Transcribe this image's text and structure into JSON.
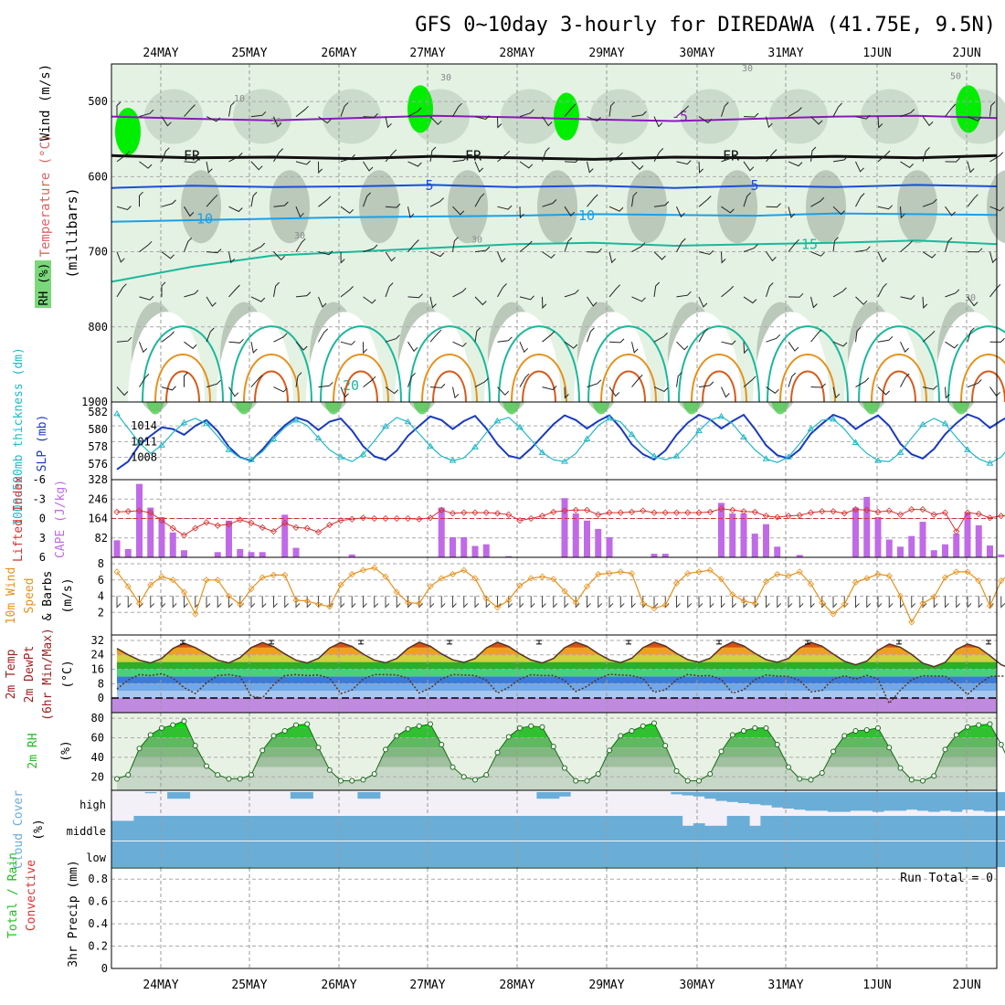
{
  "title": "GFS 0~10day 3-hourly for DIREDAWA (41.75E, 9.5N)",
  "dates": [
    "24MAY",
    "25MAY",
    "26MAY",
    "27MAY",
    "28MAY",
    "29MAY",
    "30MAY",
    "31MAY",
    "1JUN",
    "2JUN"
  ],
  "colors": {
    "rh_light": "#e4f2e4",
    "rh_mid": "#c8d8c8",
    "rh_dark": "#a8b8a8",
    "rh_green": "#50cc50",
    "rh_bright": "#00ee00",
    "t_neg5": "#8a1aba",
    "t_0": "#111111",
    "t_5": "#1a4fd8",
    "t_10": "#1aa0e8",
    "t_15": "#1ab89a",
    "t_20": "#e8901a",
    "t_25": "#d85a1a",
    "slp": "#1a3ac0",
    "thick": "#22b8c8",
    "cape": "#c06ae8",
    "lifted": "#d83030",
    "wind10": "#e8901a",
    "cloud": "#6aaed8",
    "cloud_bg": "#f4f0f8",
    "rh2m": "#20c020"
  },
  "chart_data": [
    {
      "type": "heatmap",
      "name": "upper_air",
      "ylabel": "(millibars)",
      "y_label_parts": [
        "Wind (m/s)",
        "Temperature (°C)",
        "RH (%)"
      ],
      "y_ticks": [
        500,
        600,
        700,
        800
      ],
      "ylim": [
        900,
        450
      ],
      "isotherm_labels": [
        "-5",
        "FR",
        "5",
        "10",
        "15",
        "20"
      ],
      "rh_labels": [
        "10",
        "30",
        "50"
      ],
      "isotherms": [
        {
          "label": "-5",
          "levels_mb": [
            520,
            523,
            525,
            522,
            519,
            521,
            524,
            526,
            523,
            520,
            519,
            522
          ]
        },
        {
          "label": "FR",
          "levels_mb": [
            572,
            575,
            574,
            576,
            573,
            575,
            577,
            574,
            575,
            573,
            575,
            572
          ]
        },
        {
          "label": "5",
          "levels_mb": [
            615,
            612,
            614,
            613,
            611,
            614,
            612,
            615,
            612,
            614,
            611,
            613
          ]
        },
        {
          "label": "10",
          "levels_mb": [
            660,
            658,
            656,
            654,
            653,
            652,
            650,
            651,
            652,
            649,
            650,
            651
          ]
        },
        {
          "label": "15",
          "levels_mb": [
            740,
            720,
            705,
            700,
            695,
            690,
            688,
            692,
            690,
            688,
            685,
            690
          ]
        }
      ],
      "diurnal_loops": {
        "label_20": "20",
        "peak_20_mb": 790,
        "peak_25_mb": 840
      }
    },
    {
      "type": "line",
      "name": "thickness_slp",
      "ylabel_left": "1000-500mb thickness (dm)",
      "ylabel_right": "SLP (mb)",
      "thickness_ticks": [
        "582",
        "580",
        "578",
        "576"
      ],
      "slp_ticks": [
        "1014",
        "1011",
        "1008"
      ],
      "top_label": "1900",
      "slp_mb": [
        1005.7,
        1007.2,
        1010.4,
        1012.1,
        1013.7,
        1013.4,
        1012.3,
        1014.0,
        1015.1,
        1013.0,
        1010.0,
        1008.0,
        1007.4,
        1009.5,
        1012.0,
        1014.1,
        1015.6,
        1014.9,
        1013.2,
        1014.8,
        1015.4,
        1013.1,
        1010.1,
        1008.2,
        1007.5,
        1009.3,
        1012.1,
        1014.0,
        1015.8,
        1015.1,
        1013.4,
        1014.9,
        1015.9,
        1013.5,
        1010.5,
        1008.3,
        1007.8,
        1009.7,
        1012.0,
        1014.3,
        1016.0,
        1015.1,
        1013.5,
        1014.9,
        1016.0,
        1013.6,
        1010.5,
        1008.6,
        1007.6,
        1009.3,
        1012.3,
        1014.6,
        1016.1,
        1015.2,
        1013.5,
        1014.9,
        1016.1,
        1013.4,
        1010.3,
        1008.4,
        1007.8,
        1009.5,
        1012.5,
        1014.4,
        1016.1,
        1015.3,
        1013.4,
        1014.8,
        1016.0,
        1014.0,
        1010.6,
        1008.6,
        1007.8,
        1009.6,
        1012.4,
        1014.5,
        1016.2,
        1015.4,
        1013.6,
        1015.0,
        1016.2,
        1013.8,
        1011.0
      ],
      "thickness_dm": [
        582.3,
        580.7,
        579.1,
        577.9,
        578.8,
        580.2,
        581.3,
        581.8,
        581.2,
        579.8,
        578.3,
        577.4,
        577.2,
        578.1,
        579.5,
        580.8,
        581.6,
        581.0,
        579.6,
        578.3,
        577.5,
        577.0,
        577.8,
        579.3,
        580.9,
        581.9,
        581.4,
        580.1,
        578.7,
        577.6,
        577.1,
        577.4,
        578.6,
        580.2,
        581.5,
        581.9,
        580.8,
        579.4,
        578.0,
        577.2,
        577.0,
        577.9,
        579.5,
        581.0,
        581.8,
        581.4,
        580.0,
        578.6,
        577.6,
        577.2,
        577.6,
        578.9,
        580.4,
        581.6,
        582.0,
        581.2,
        579.7,
        578.3,
        577.3,
        576.9,
        577.5,
        579.0,
        580.6,
        581.6,
        581.7,
        580.6,
        579.1,
        577.9,
        577.1,
        577.0,
        578.0,
        579.6,
        581.1,
        581.8,
        581.2,
        579.7,
        578.3,
        577.3,
        576.8,
        577.5,
        579.0,
        580.5,
        581.3
      ]
    },
    {
      "type": "bar",
      "name": "cape_lifted_index",
      "ylabel_left": "Lifted Index",
      "ylabel_right": "CAPE (J/kg)",
      "cape_ticks": [
        "328",
        "246",
        "164",
        "82"
      ],
      "li_ticks": [
        "-6",
        "-3",
        "0",
        "3",
        "6"
      ],
      "cape_jkg": [
        72,
        35,
        310,
        210,
        170,
        105,
        30,
        0,
        0,
        22,
        155,
        35,
        22,
        22,
        0,
        180,
        40,
        0,
        0,
        0,
        0,
        12,
        0,
        0,
        0,
        0,
        0,
        0,
        0,
        210,
        85,
        85,
        48,
        55,
        0,
        5,
        0,
        0,
        0,
        0,
        250,
        185,
        155,
        120,
        85,
        0,
        0,
        0,
        15,
        15,
        0,
        0,
        0,
        0,
        230,
        185,
        185,
        100,
        140,
        45,
        0,
        10,
        0,
        0,
        0,
        0,
        210,
        255,
        170,
        75,
        45,
        90,
        150,
        30,
        55,
        100,
        190,
        135,
        50,
        12,
        0,
        0,
        0,
        0
      ],
      "lifted_index": [
        -1.0,
        -1.1,
        -1.2,
        -0.9,
        0.3,
        1.5,
        2.6,
        1.5,
        0.6,
        1.1,
        0.9,
        0.2,
        0.7,
        1.4,
        2.0,
        0.7,
        1.4,
        1.5,
        2.1,
        1.0,
        0.3,
        0.1,
        -0.1,
        0.0,
        0.0,
        0.0,
        0.0,
        0.1,
        -0.1,
        -1.3,
        -0.8,
        -0.9,
        -0.9,
        -0.9,
        -0.8,
        -0.6,
        0.3,
        0.0,
        -0.4,
        -1.0,
        -1.2,
        -1.3,
        -1.3,
        -0.6,
        -0.9,
        -0.9,
        -1.0,
        -1.2,
        -0.9,
        -0.9,
        -0.9,
        -0.9,
        -0.9,
        -1.0,
        -1.5,
        -1.3,
        -1.1,
        -1.0,
        -0.4,
        -0.2,
        -0.4,
        -0.5,
        -0.9,
        -1.1,
        -1.1,
        -0.8,
        -1.4,
        -1.3,
        -1.0,
        -1.2,
        -0.6,
        -1.4,
        -1.4,
        -0.6,
        -0.9,
        2.0,
        -0.9,
        -0.7,
        -0.1,
        -0.4,
        -0.5,
        -1.3,
        -0.4
      ]
    },
    {
      "type": "line",
      "name": "wind10m",
      "ylabel": "10m Wind Speed (m/s) & Barbs",
      "y_ticks": [
        "8",
        "6",
        "4",
        "2"
      ],
      "speed_ms": [
        7.0,
        5.2,
        3.1,
        5.4,
        6.4,
        6.0,
        4.5,
        1.8,
        6.0,
        6.0,
        4.0,
        3.0,
        4.9,
        6.3,
        6.6,
        6.6,
        3.5,
        3.4,
        3.0,
        2.7,
        5.4,
        6.7,
        7.2,
        7.5,
        6.4,
        4.5,
        3.2,
        3.1,
        5.2,
        6.2,
        6.7,
        7.2,
        6.2,
        3.7,
        2.6,
        3.5,
        5.3,
        6.2,
        6.4,
        6.1,
        4.6,
        3.2,
        5.2,
        6.7,
        6.8,
        7.0,
        6.8,
        3.1,
        2.5,
        2.9,
        5.6,
        6.8,
        7.0,
        7.2,
        6.1,
        4.2,
        3.4,
        3.1,
        5.8,
        6.7,
        6.5,
        7.0,
        5.5,
        3.2,
        1.8,
        3.0,
        5.7,
        6.2,
        6.7,
        6.5,
        4.0,
        0.8,
        3.1,
        3.9,
        6.3,
        7.0,
        7.0,
        5.9,
        2.8,
        5.9,
        7.0,
        5.8,
        3.9
      ]
    },
    {
      "type": "area",
      "name": "temp2m",
      "ylabel": "2m Temp 2m DewPt (6hr Min/Max) (°C)",
      "y_ticks": [
        "32",
        "24",
        "16",
        "8",
        "0"
      ],
      "temp_c": [
        27.5,
        24.0,
        21.0,
        19.5,
        22.0,
        27.5,
        30.5,
        28.0,
        24.5,
        21.0,
        19.5,
        22.5,
        28.0,
        30.8,
        28.5,
        24.5,
        21.0,
        19.5,
        22.0,
        27.8,
        30.8,
        28.6,
        24.4,
        21.0,
        19.6,
        22.0,
        27.5,
        31.0,
        28.8,
        24.5,
        21.2,
        19.8,
        22.0,
        27.8,
        31.0,
        28.6,
        24.5,
        21.1,
        19.5,
        22.0,
        27.9,
        31.0,
        28.8,
        24.6,
        21.2,
        19.7,
        22.1,
        27.9,
        31.0,
        28.9,
        24.8,
        21.3,
        19.9,
        22.1,
        28.0,
        31.1,
        29.0,
        24.8,
        21.3,
        19.9,
        22.0,
        27.8,
        30.9,
        28.8,
        24.4,
        20.4,
        18.5,
        20.5,
        26.5,
        30.0,
        28.2,
        24.2,
        19.4,
        17.4,
        19.8,
        27.0,
        30.0,
        28.0,
        23.5,
        18.5,
        16.2,
        17.0,
        25.0
      ],
      "dewpt_c": [
        5.0,
        10.0,
        13.0,
        12.5,
        13.5,
        11.0,
        5.8,
        2.5,
        8.5,
        12.5,
        13.0,
        12.0,
        1.0,
        0.0,
        7.5,
        12.5,
        13.0,
        12.5,
        12.8,
        11.0,
        2.5,
        4.5,
        10.5,
        13.0,
        13.0,
        12.8,
        11.0,
        2.8,
        5.5,
        10.6,
        13.0,
        12.8,
        12.5,
        10.0,
        2.8,
        6.0,
        10.5,
        13.0,
        12.5,
        12.5,
        9.8,
        3.6,
        6.5,
        10.6,
        13.2,
        12.8,
        12.5,
        10.8,
        3.2,
        4.6,
        10.2,
        13.1,
        12.3,
        12.5,
        10.3,
        2.7,
        4.6,
        10.2,
        12.8,
        12.2,
        12.0,
        9.8,
        3.4,
        4.2,
        10.5,
        12.4,
        10.5,
        12.6,
        10.5,
        -3.0,
        4.4,
        10.2,
        12.4,
        12.2,
        12.2,
        7.8,
        2.0,
        7.5,
        12.0,
        12.2,
        12.0,
        10.5,
        4.8
      ]
    },
    {
      "type": "area",
      "name": "rh2m",
      "ylabel": "2m RH (%)",
      "y_ticks": [
        "80",
        "60",
        "40",
        "20"
      ],
      "rh_pct": [
        18,
        22,
        49,
        63,
        70,
        73,
        77,
        52,
        31,
        22,
        18,
        18,
        22,
        47,
        62,
        67,
        73,
        74,
        50,
        27,
        16,
        16,
        17,
        23,
        48,
        62,
        69,
        72,
        74,
        53,
        30,
        20,
        17,
        22,
        45,
        61,
        70,
        72,
        71,
        51,
        29,
        16,
        16,
        23,
        47,
        62,
        67,
        72,
        75,
        52,
        26,
        16,
        16,
        23,
        46,
        63,
        67,
        70,
        70,
        53,
        30,
        18,
        17,
        24,
        46,
        62,
        67,
        68,
        70,
        50,
        29,
        17,
        16,
        21,
        48,
        63,
        71,
        73,
        74,
        53,
        29,
        21,
        18
      ]
    },
    {
      "type": "area",
      "name": "cloud_cover",
      "ylabel": "Cloud Cover (%)",
      "y_ticks": [
        "high",
        "middle",
        "low"
      ],
      "high_pct": [
        0,
        0,
        0,
        5,
        0,
        30,
        30,
        0,
        0,
        0,
        0,
        0,
        0,
        0,
        0,
        0,
        30,
        30,
        0,
        0,
        0,
        0,
        30,
        30,
        0,
        0,
        0,
        0,
        0,
        0,
        0,
        0,
        0,
        0,
        0,
        0,
        0,
        0,
        30,
        30,
        20,
        0,
        0,
        0,
        0,
        0,
        0,
        0,
        0,
        0,
        10,
        15,
        20,
        30,
        40,
        45,
        50,
        55,
        60,
        70,
        75,
        80,
        85,
        85,
        90,
        90,
        85,
        85,
        90,
        85,
        85,
        80,
        85,
        90,
        85,
        90,
        80,
        85,
        90,
        85,
        80,
        70,
        65
      ],
      "middle_pct": [
        80,
        80,
        100,
        100,
        100,
        100,
        100,
        100,
        100,
        100,
        100,
        100,
        100,
        100,
        100,
        100,
        100,
        100,
        100,
        100,
        100,
        100,
        100,
        100,
        100,
        100,
        100,
        100,
        100,
        100,
        100,
        100,
        100,
        100,
        100,
        100,
        100,
        100,
        100,
        100,
        100,
        100,
        100,
        100,
        100,
        100,
        100,
        100,
        100,
        100,
        100,
        60,
        70,
        60,
        60,
        100,
        100,
        60,
        100,
        100,
        100,
        100,
        100,
        100,
        100,
        100,
        100,
        100,
        100,
        100,
        100,
        100,
        100,
        100,
        100,
        100,
        100,
        100,
        100,
        100,
        100,
        100,
        100
      ],
      "low_pct": [
        100,
        100,
        100,
        100,
        100,
        100,
        100,
        100,
        100,
        100,
        100,
        100,
        100,
        100,
        100,
        100,
        100,
        100,
        100,
        100,
        100,
        100,
        100,
        100,
        100,
        100,
        100,
        100,
        100,
        100,
        100,
        100,
        100,
        100,
        100,
        100,
        100,
        100,
        100,
        100,
        100,
        100,
        100,
        100,
        100,
        100,
        100,
        100,
        100,
        100,
        100,
        100,
        100,
        100,
        100,
        100,
        100,
        100,
        100,
        100,
        100,
        100,
        100,
        100,
        100,
        100,
        100,
        100,
        100,
        100,
        100,
        100,
        100,
        100,
        100,
        100,
        100,
        100,
        100,
        100,
        100,
        100,
        100
      ]
    },
    {
      "type": "bar",
      "name": "precip",
      "ylabel": "3hr Precip (mm)",
      "label_parts": [
        "Total / Rain",
        "Convective"
      ],
      "run_total": "Run Total = 0",
      "y_ticks": [
        "0.8",
        "0.6",
        "0.4",
        "0.2",
        "0"
      ],
      "ylim": [
        0,
        0.9
      ],
      "total_mm": [],
      "convective_mm": []
    }
  ]
}
